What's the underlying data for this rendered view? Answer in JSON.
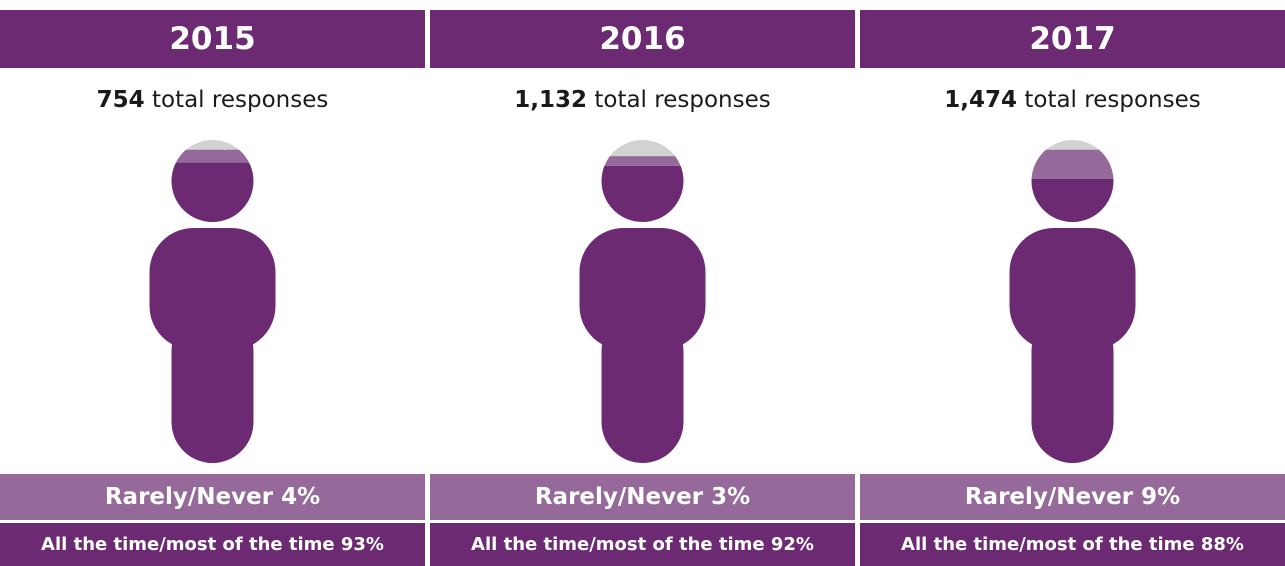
{
  "chart_data": {
    "type": "pictogram",
    "colors": {
      "always": "#6b2a72",
      "rarely": "#956a9b",
      "other": "#d2d2d2"
    },
    "panels": [
      {
        "year": "2015",
        "total_value": "754",
        "total_suffix": " total responses",
        "rarely_label": "Rarely/Never 4%",
        "always_label": "All the time/most of the time 93%",
        "rarely_pct": 4,
        "always_pct": 93
      },
      {
        "year": "2016",
        "total_value": "1,132",
        "total_suffix": " total responses",
        "rarely_label": "Rarely/Never 3%",
        "always_label": "All the time/most of the time 92%",
        "rarely_pct": 3,
        "always_pct": 92
      },
      {
        "year": "2017",
        "total_value": "1,474",
        "total_suffix": " total responses",
        "rarely_label": "Rarely/Never 9%",
        "always_label": "All the time/most of the time 88%",
        "rarely_pct": 9,
        "always_pct": 88
      }
    ]
  }
}
